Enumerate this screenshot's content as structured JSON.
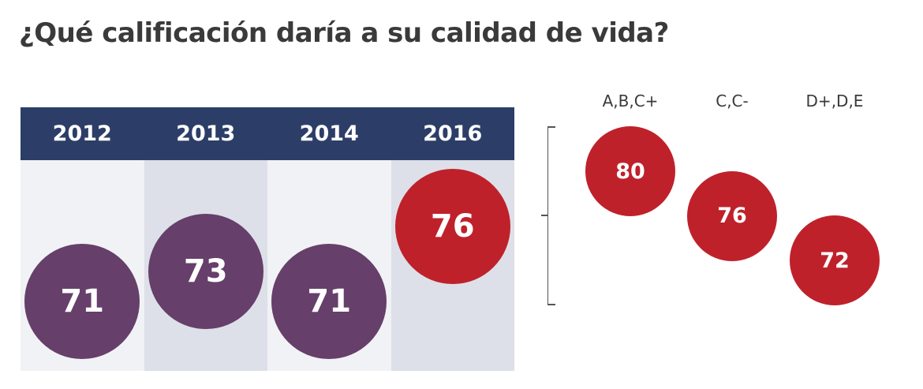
{
  "title": "¿Qué calificación daría a su calidad de vida?",
  "colors": {
    "header": "#2c3e68",
    "col_light": "#f1f2f5",
    "col_dark": "#dde0e8",
    "bubble_purple": "#663f6a",
    "bubble_red": "#bf212b"
  },
  "chart_data": [
    {
      "type": "bubble",
      "categories": [
        "2012",
        "2013",
        "2014",
        "2016"
      ],
      "values": [
        71,
        73,
        71,
        76
      ],
      "highlight": "2016"
    },
    {
      "type": "bubble",
      "categories": [
        "A,B,C+",
        "C,C-",
        "D+,D,E"
      ],
      "values": [
        80,
        76,
        72
      ]
    }
  ]
}
